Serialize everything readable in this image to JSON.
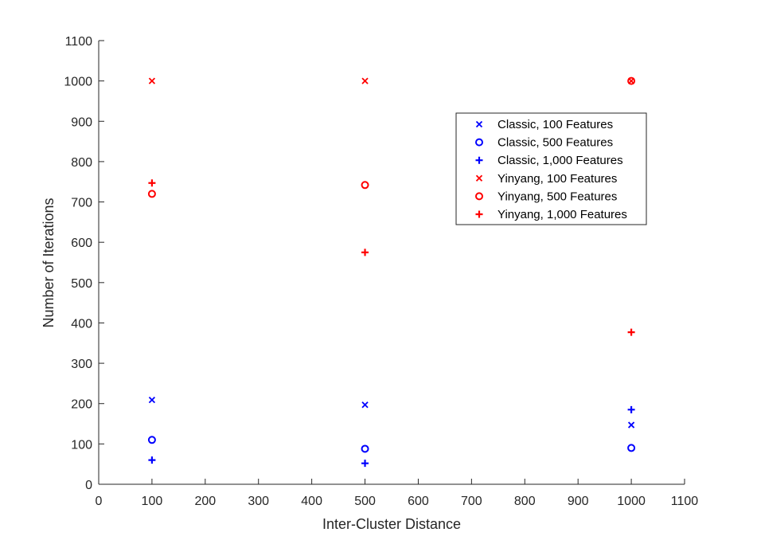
{
  "chart_data": {
    "type": "scatter",
    "xlabel": "Inter-Cluster Distance",
    "ylabel": "Number of Iterations",
    "xlim": [
      0,
      1100
    ],
    "ylim": [
      0,
      1100
    ],
    "xticks": [
      0,
      100,
      200,
      300,
      400,
      500,
      600,
      700,
      800,
      900,
      1000,
      1100
    ],
    "yticks": [
      0,
      100,
      200,
      300,
      400,
      500,
      600,
      700,
      800,
      900,
      1000,
      1100
    ],
    "grid": false,
    "legend_position": "top-right",
    "series": [
      {
        "name": "Classic, 100 Features",
        "marker": "x",
        "color": "#0000ff",
        "points": [
          [
            100,
            209
          ],
          [
            500,
            197
          ],
          [
            1000,
            147
          ]
        ]
      },
      {
        "name": "Classic, 500 Features",
        "marker": "o",
        "color": "#0000ff",
        "points": [
          [
            100,
            110
          ],
          [
            500,
            88
          ],
          [
            1000,
            90
          ]
        ]
      },
      {
        "name": "Classic, 1,000 Features",
        "marker": "+",
        "color": "#0000ff",
        "points": [
          [
            100,
            60
          ],
          [
            500,
            52
          ],
          [
            1000,
            185
          ]
        ]
      },
      {
        "name": "Yinyang, 100 Features",
        "marker": "x",
        "color": "#ff0000",
        "points": [
          [
            100,
            1000
          ],
          [
            500,
            1000
          ],
          [
            1000,
            1000
          ]
        ]
      },
      {
        "name": "Yinyang, 500 Features",
        "marker": "o",
        "color": "#ff0000",
        "points": [
          [
            100,
            720
          ],
          [
            500,
            742
          ],
          [
            1000,
            1000
          ]
        ]
      },
      {
        "name": "Yinyang, 1,000 Features",
        "marker": "+",
        "color": "#ff0000",
        "points": [
          [
            100,
            747
          ],
          [
            500,
            575
          ],
          [
            1000,
            377
          ]
        ]
      }
    ]
  }
}
